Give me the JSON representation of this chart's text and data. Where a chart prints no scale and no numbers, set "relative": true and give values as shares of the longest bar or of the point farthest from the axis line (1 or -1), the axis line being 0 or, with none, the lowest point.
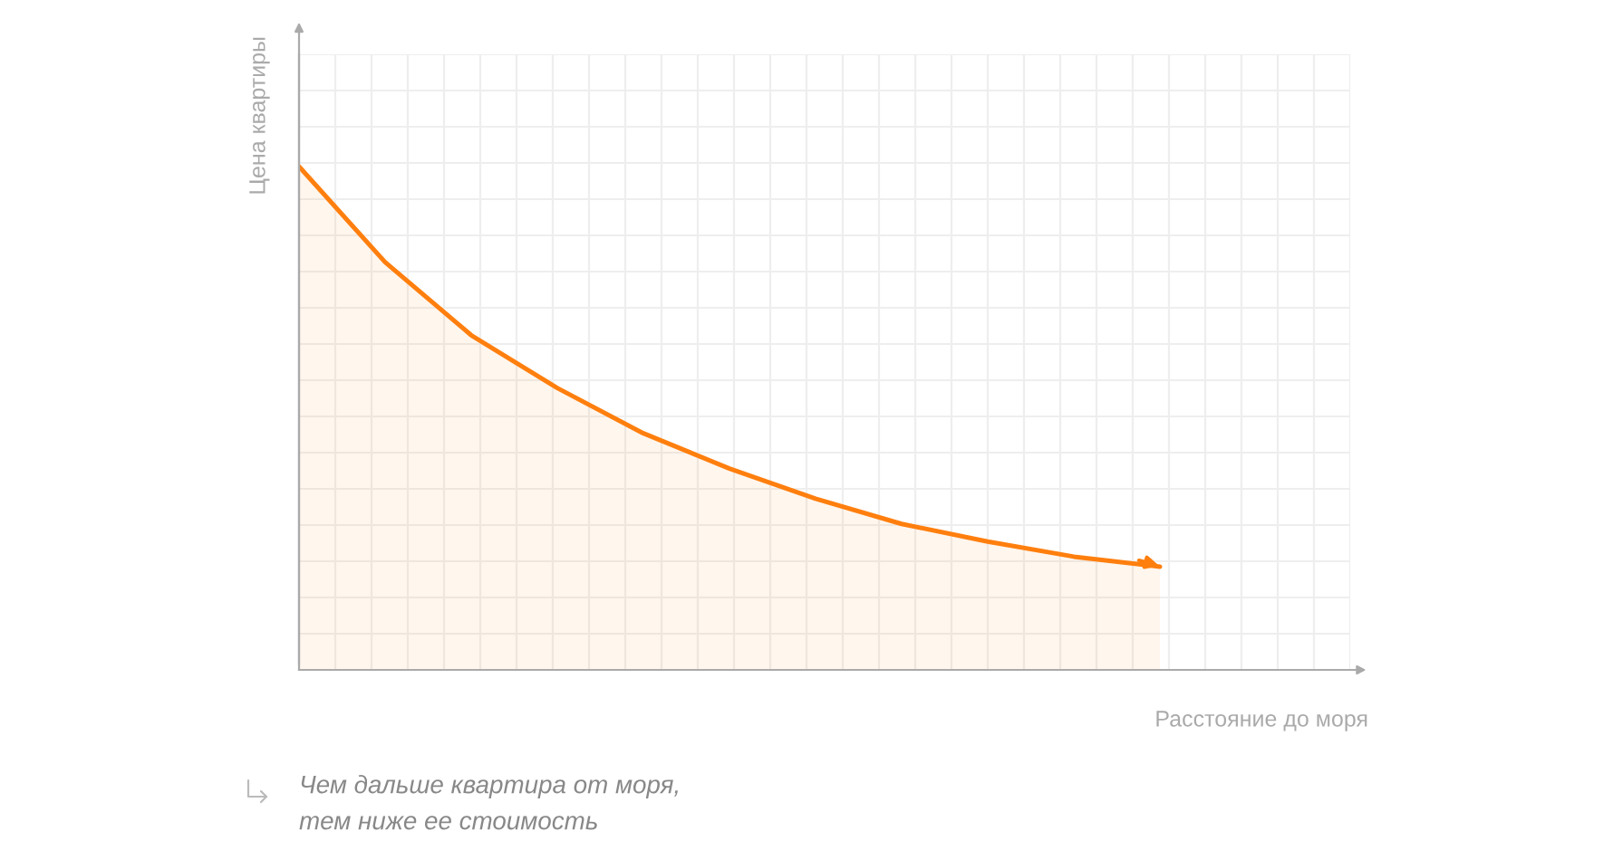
{
  "chart_data": {
    "type": "area",
    "relative": true,
    "ylabel": "Цена квартиры",
    "xlabel": "Расстояние до моря",
    "categories": [
      null,
      null,
      null,
      null,
      null,
      null,
      null,
      null,
      null,
      null,
      null
    ],
    "series": [
      {
        "color": "#ff7f0e",
        "values": [
          1,
          0.81,
          0.665,
          0.56,
          0.47,
          0.4,
          0.34,
          0.29,
          0.255,
          0.225,
          0.205
        ]
      }
    ],
    "grid": true,
    "annotations": [
      "Чем дальше квартира от моря,\nтем ниже ее стоимость"
    ]
  }
}
